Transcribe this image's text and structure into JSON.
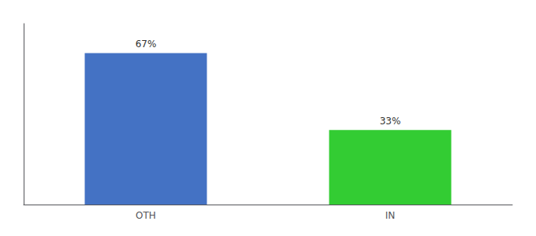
{
  "chart_data": {
    "type": "bar",
    "categories": [
      "OTH",
      "IN"
    ],
    "values": [
      67,
      33
    ],
    "value_labels": [
      "67%",
      "33%"
    ],
    "colors": [
      "#4472c4",
      "#33cc33"
    ],
    "ylim": [
      0,
      80
    ],
    "data_labels": true,
    "tick_labels": "x",
    "grid": false
  }
}
